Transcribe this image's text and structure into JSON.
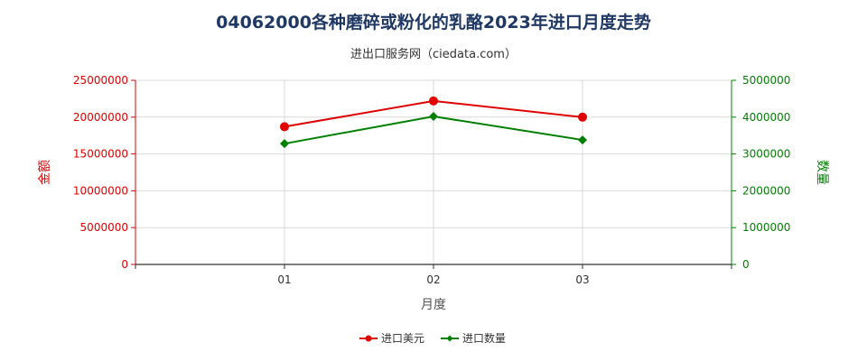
{
  "header": {
    "title": "04062000各种磨碎或粉化的乳酪2023年进口月度走势",
    "subtitle": "进出口服务网（ciedata.com）"
  },
  "chart_data": {
    "type": "line",
    "title": "04062000各种磨碎或粉化的乳酪2023年进口月度走势",
    "subtitle": "进出口服务网（ciedata.com）",
    "xlabel": "月度",
    "ylabel_left": "金额",
    "ylabel_right": "数量",
    "categories": [
      "01",
      "02",
      "03"
    ],
    "ylim_left": [
      0,
      25000000
    ],
    "ylim_right": [
      0,
      5000000
    ],
    "yticks_left": [
      "0",
      "5000000",
      "10000000",
      "15000000",
      "20000000",
      "25000000"
    ],
    "yticks_right": [
      "0",
      "1000000",
      "2000000",
      "3000000",
      "4000000",
      "5000000"
    ],
    "grid": true,
    "legend_position": "bottom",
    "series": [
      {
        "name": "进口美元",
        "axis": "left",
        "color": "#e00000",
        "marker": "circle",
        "values": [
          18700000,
          22200000,
          20000000
        ]
      },
      {
        "name": "进口数量",
        "axis": "right",
        "color": "#008000",
        "marker": "diamond",
        "values": [
          3280000,
          4020000,
          3380000
        ]
      }
    ]
  }
}
